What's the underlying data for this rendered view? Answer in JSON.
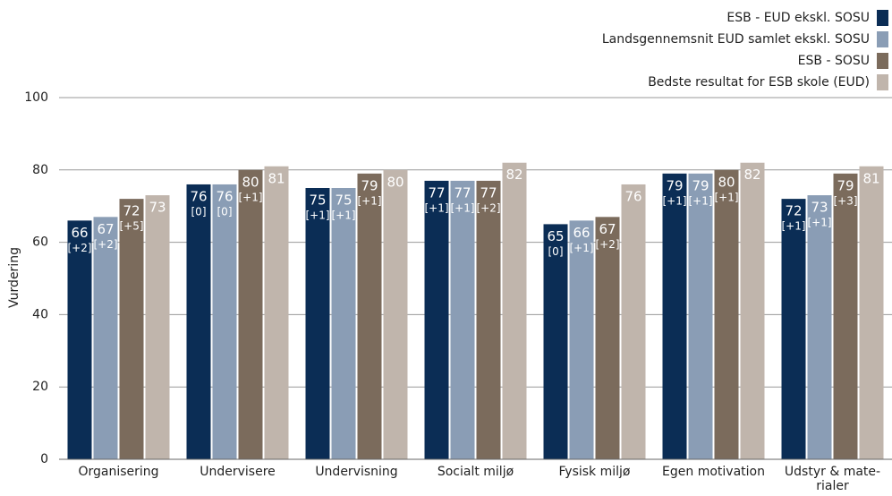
{
  "chart_data": {
    "type": "bar",
    "ylabel": "Vurdering",
    "categories": [
      "Organisering",
      "Undervisere",
      "Undervisning",
      "Socialt miljø",
      "Fysisk miljø",
      "Egen motivation",
      "Udstyr & mate-rialer"
    ],
    "series": [
      {
        "name": "ESB - EUD ekskl. SOSU",
        "color": "#0b2d55",
        "values": [
          66,
          76,
          75,
          77,
          65,
          79,
          72
        ],
        "changes": [
          "[+2]",
          "[0]",
          "[+1]",
          "[+1]",
          "[0]",
          "[+1]",
          "[+1]"
        ]
      },
      {
        "name": "Landsgennemsnit EUD samlet ekskl. SOSU",
        "color": "#8a9db5",
        "values": [
          67,
          76,
          75,
          77,
          66,
          79,
          73
        ],
        "changes": [
          "[+2]",
          "[0]",
          "[+1]",
          "[+1]",
          "[+1]",
          "[+1]",
          "[+1]"
        ]
      },
      {
        "name": "ESB - SOSU",
        "color": "#7b6b5c",
        "values": [
          72,
          80,
          79,
          77,
          67,
          80,
          79
        ],
        "changes": [
          "[+5]",
          "[+1]",
          "[+1]",
          "[+2]",
          "[+2]",
          "[+1]",
          "[+3]"
        ]
      },
      {
        "name": "Bedste resultat for ESB skole (EUD)",
        "color": "#c0b5ac",
        "values": [
          73,
          81,
          80,
          82,
          76,
          82,
          81
        ]
      }
    ],
    "ylim": [
      0,
      100
    ],
    "yticks": [
      0,
      20,
      40,
      60,
      80,
      100
    ],
    "grid": true,
    "legend": "top-right"
  }
}
